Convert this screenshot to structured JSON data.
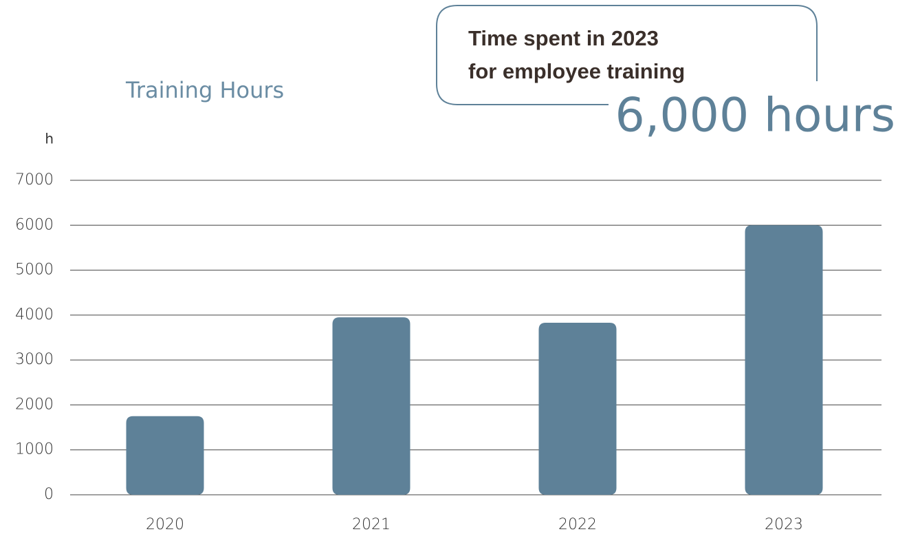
{
  "chart_data": {
    "type": "bar",
    "title": "Training Hours",
    "y_unit": "h",
    "callout": [
      "Time spent in 2023",
      "for employee training"
    ],
    "highlight": "6,000 hours",
    "categories": [
      "2020",
      "2021",
      "2022",
      "2023"
    ],
    "values": [
      1750,
      3950,
      3830,
      6000
    ],
    "color": "#5e8198",
    "ylim": [
      0,
      7000
    ],
    "yticks": [
      0,
      1000,
      2000,
      3000,
      4000,
      5000,
      6000,
      7000
    ],
    "grid": true
  }
}
